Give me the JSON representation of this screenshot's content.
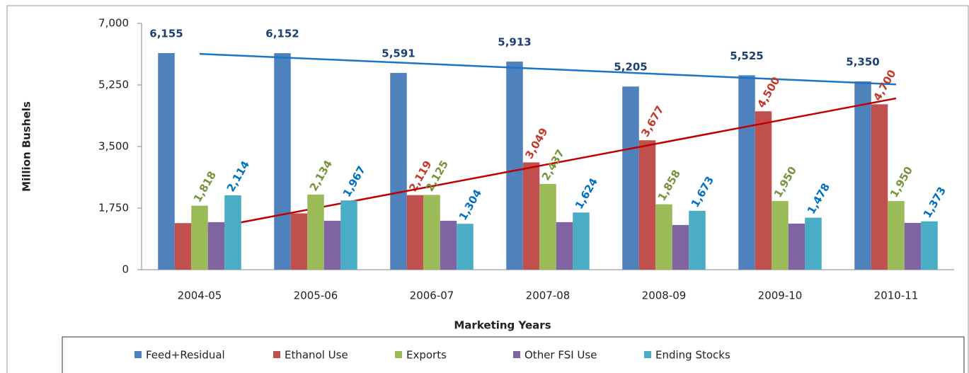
{
  "chart_data": {
    "type": "bar",
    "y_label": "Million Bushels",
    "x_label": "Marketing Years",
    "categories": [
      "2004-05",
      "2005-06",
      "2006-07",
      "2007-08",
      "2008-09",
      "2009-10",
      "2010-11"
    ],
    "series": [
      {
        "name": "Feed+Residual",
        "color": "#4f81bd",
        "label_color": "#1f3f6e",
        "trend_color": "#1a75c4",
        "values": [
          6155,
          6152,
          5591,
          5913,
          5205,
          5525,
          5350
        ],
        "value_labels": [
          "6,155",
          "6,152",
          "5,591",
          "5,913",
          "5,205",
          "5,525",
          "5,350"
        ]
      },
      {
        "name": "Ethanol Use",
        "color": "#c0504d",
        "label_color": "#c0392b",
        "trend_color": "#c00000",
        "values": [
          1323,
          1600,
          2119,
          3049,
          3677,
          4500,
          4700
        ],
        "value_labels": [
          null,
          null,
          "2,119",
          "3,049",
          "3,677",
          "4,500",
          "4,700"
        ]
      },
      {
        "name": "Exports",
        "color": "#9bbb59",
        "label_color": "#76923c",
        "values": [
          1818,
          2134,
          2125,
          2437,
          1858,
          1950,
          1950
        ],
        "value_labels": [
          "1,818",
          "2,134",
          "2,125",
          "2,437",
          "1,858",
          "1,950",
          "1,950"
        ]
      },
      {
        "name": "Other FSI Use",
        "color": "#8064a2",
        "values": [
          1350,
          1390,
          1390,
          1350,
          1270,
          1310,
          1330
        ],
        "value_labels": [
          null,
          null,
          null,
          null,
          null,
          null,
          null
        ]
      },
      {
        "name": "Ending Stocks",
        "color": "#4bacc6",
        "label_color": "#0070c0",
        "values": [
          2114,
          1967,
          1304,
          1624,
          1673,
          1478,
          1373
        ],
        "value_labels": [
          "2,114",
          "1,967",
          "1,304",
          "1,624",
          "1,673",
          "1,478",
          "1,373"
        ]
      }
    ],
    "ylim": [
      0,
      7000
    ],
    "yticks": [
      0,
      {
        "value": 1750,
        "label": "1,750"
      },
      {
        "value": 3500,
        "label": "3,500"
      },
      {
        "value": 5250,
        "label": "5,250"
      },
      {
        "value": 7000,
        "label": "7,000"
      }
    ],
    "grid": false,
    "legend": "bottom"
  }
}
